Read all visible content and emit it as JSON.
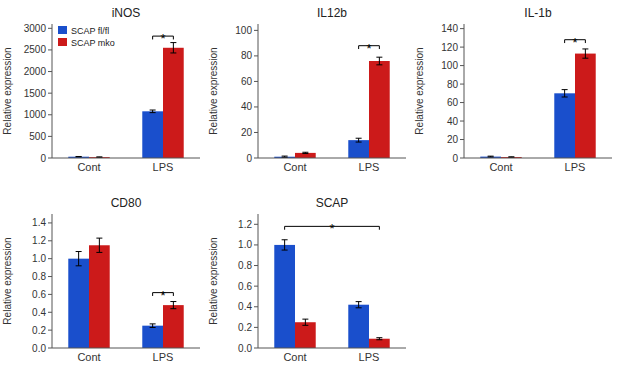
{
  "chart_data": [
    {
      "type": "bar",
      "title": "iNOS",
      "y_label": "Relative expression",
      "categories": [
        "Cont",
        "LPS"
      ],
      "series": [
        {
          "name": "SCAP fl/fl",
          "color": "#1a4fcc",
          "values": [
            30,
            1080
          ],
          "errors": [
            5,
            30
          ]
        },
        {
          "name": "SCAP mko",
          "color": "#cc1a1a",
          "values": [
            20,
            2550
          ],
          "errors": [
            5,
            120
          ]
        }
      ],
      "ylim": [
        0,
        3100
      ],
      "yticks": [
        0,
        500,
        1000,
        1500,
        2000,
        2500,
        3000
      ],
      "legend": "upper left",
      "annotations": [
        {
          "text": "*",
          "y": 2820,
          "from": "LPS",
          "to": "LPS"
        }
      ]
    },
    {
      "type": "bar",
      "title": "IL12b",
      "y_label": "Relative expression",
      "categories": [
        "Cont",
        "LPS"
      ],
      "series": [
        {
          "color": "#1a4fcc",
          "values": [
            1,
            14
          ],
          "errors": [
            0.5,
            1.5
          ]
        },
        {
          "color": "#cc1a1a",
          "values": [
            4,
            76
          ],
          "errors": [
            0.5,
            3
          ]
        }
      ],
      "ylim": [
        0,
        105
      ],
      "yticks": [
        0,
        20,
        40,
        60,
        80,
        100
      ],
      "annotations": [
        {
          "text": "*",
          "y": 88,
          "from": "LPS",
          "to": "LPS"
        }
      ]
    },
    {
      "type": "bar",
      "title": "IL-1b",
      "y_label": "Relative expression",
      "categories": [
        "Cont",
        "LPS"
      ],
      "series": [
        {
          "color": "#1a4fcc",
          "values": [
            1.5,
            70
          ],
          "errors": [
            0.5,
            4
          ]
        },
        {
          "color": "#cc1a1a",
          "values": [
            1,
            113
          ],
          "errors": [
            0.3,
            5
          ]
        }
      ],
      "ylim": [
        0,
        145
      ],
      "yticks": [
        0,
        20,
        40,
        60,
        80,
        100,
        120,
        140
      ],
      "annotations": [
        {
          "text": "*",
          "y": 128,
          "from": "LPS",
          "to": "LPS"
        }
      ]
    },
    {
      "type": "bar",
      "title": "CD80",
      "y_label": "Relative expression",
      "categories": [
        "Cont",
        "LPS"
      ],
      "series": [
        {
          "color": "#1a4fcc",
          "values": [
            1.0,
            0.25
          ],
          "errors": [
            0.08,
            0.02
          ]
        },
        {
          "color": "#cc1a1a",
          "values": [
            1.15,
            0.48
          ],
          "errors": [
            0.08,
            0.04
          ]
        }
      ],
      "ylim": [
        0,
        1.5
      ],
      "yticks": [
        {
          "value": 0,
          "label": "0.0"
        },
        0.2,
        0.4,
        0.6,
        0.8,
        {
          "value": 1.0,
          "label": "1.0"
        },
        1.2,
        1.4
      ],
      "annotations": [
        {
          "text": "*",
          "y": 0.62,
          "from": "LPS",
          "to": "LPS"
        }
      ]
    },
    {
      "type": "bar",
      "title": "SCAP",
      "y_label": "Relative expression",
      "categories": [
        "Cont",
        "LPS"
      ],
      "series": [
        {
          "color": "#1a4fcc",
          "values": [
            1.0,
            0.42
          ],
          "errors": [
            0.05,
            0.03
          ]
        },
        {
          "color": "#cc1a1a",
          "values": [
            0.25,
            0.09
          ],
          "errors": [
            0.03,
            0.01
          ]
        }
      ],
      "ylim": [
        0,
        1.3
      ],
      "yticks": [
        {
          "value": 0,
          "label": "0.0"
        },
        0.2,
        0.4,
        0.6,
        0.8,
        {
          "value": 1.0,
          "label": "1.0"
        },
        1.2
      ],
      "annotations": [
        {
          "text": "*",
          "y": 1.18,
          "from": "Cont",
          "to": "LPS"
        }
      ]
    }
  ]
}
